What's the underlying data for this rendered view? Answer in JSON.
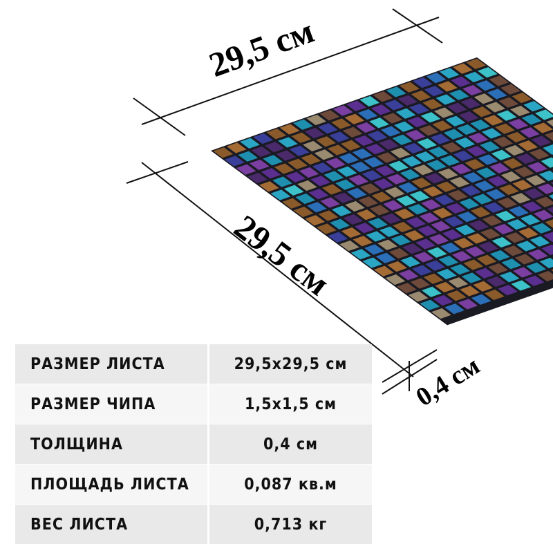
{
  "dimensions": {
    "width_label": "29,5 см",
    "length_label": "29,5 см",
    "thickness_label": "0,4 см"
  },
  "mosaic": {
    "rows": 20,
    "cols": 20,
    "palette": [
      "#1f8fb0",
      "#2aa6c4",
      "#3a3f9a",
      "#5b2f8f",
      "#7a3fa0",
      "#8a5a2a",
      "#a46b34",
      "#6e4a3a",
      "#2b6fb8",
      "#3cc2c8",
      "#9a8a70",
      "#4a2a6a"
    ]
  },
  "specs": {
    "rows": [
      {
        "label": "РАЗМЕР ЛИСТА",
        "value": "29,5x29,5 см"
      },
      {
        "label": "РАЗМЕР ЧИПА",
        "value": "1,5x1,5 см"
      },
      {
        "label": "ТОЛЩИНА",
        "value": "0,4 см"
      },
      {
        "label": "ПЛОЩАДЬ ЛИСТА",
        "value": "0,087 кв.м"
      },
      {
        "label": "ВЕС ЛИСТА",
        "value": "0,713 кг"
      }
    ]
  }
}
